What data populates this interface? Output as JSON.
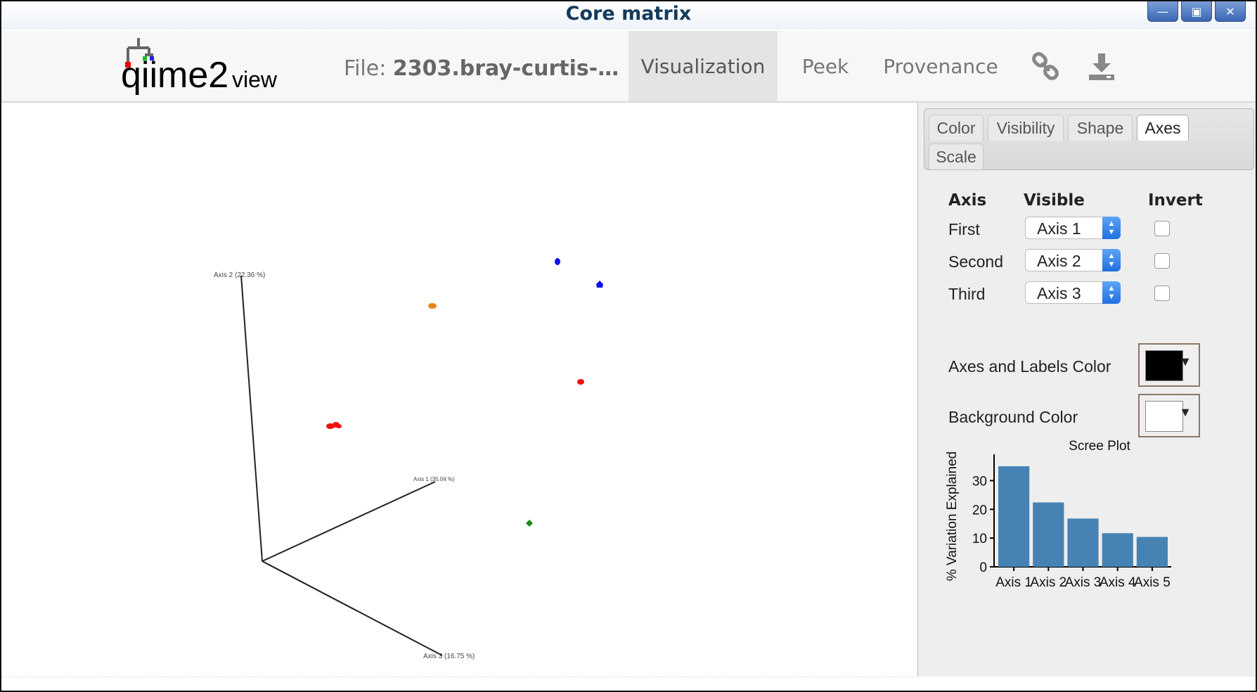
{
  "window": {
    "title": "Core matrix",
    "buttons": [
      "minimize",
      "maximize",
      "close"
    ]
  },
  "navbar": {
    "logo_text_main": "qiime2",
    "logo_text_sub": "view",
    "file_prefix": "File:",
    "file_name": "2303.bray-curtis-…",
    "tabs": [
      {
        "label": "Visualization",
        "active": true
      },
      {
        "label": "Peek",
        "active": false
      },
      {
        "label": "Provenance",
        "active": false
      }
    ],
    "icons": [
      "link-icon",
      "download-icon"
    ]
  },
  "plot": {
    "axis_labels": [
      "Axis 2 (22.36 %)",
      "Axis 1 (35.04 %)",
      "Axis 3 (16.75 %)"
    ],
    "point_colors": {
      "blue": "#1010ee",
      "orange": "#e8861c",
      "red": "#ee1010",
      "green": "#1a8a1a"
    }
  },
  "panel": {
    "tabs": [
      {
        "label": "Color",
        "active": false
      },
      {
        "label": "Visibility",
        "active": false
      },
      {
        "label": "Shape",
        "active": false
      },
      {
        "label": "Axes",
        "active": true
      },
      {
        "label": "Scale",
        "active": false
      }
    ],
    "headers": {
      "axis": "Axis",
      "visible": "Visible",
      "invert": "Invert"
    },
    "rows": [
      {
        "label": "First",
        "value": "Axis 1",
        "inverted": false
      },
      {
        "label": "Second",
        "value": "Axis 2",
        "inverted": false
      },
      {
        "label": "Third",
        "value": "Axis 3",
        "inverted": false
      }
    ],
    "axes_color_label": "Axes and Labels Color",
    "axes_color": "#000000",
    "bg_color_label": "Background Color",
    "bg_color": "#ffffff"
  },
  "chart_data": {
    "type": "bar",
    "title": "Scree Plot",
    "xlabel": "",
    "ylabel": "% Variation Explained",
    "categories": [
      "Axis 1",
      "Axis 2",
      "Axis 3",
      "Axis 4",
      "Axis 5"
    ],
    "values": [
      35,
      22.4,
      16.8,
      11.7,
      10.4
    ],
    "yticks": [
      0,
      10,
      20,
      30
    ],
    "ylim": [
      0,
      35
    ],
    "bar_color": "#4682b4"
  }
}
